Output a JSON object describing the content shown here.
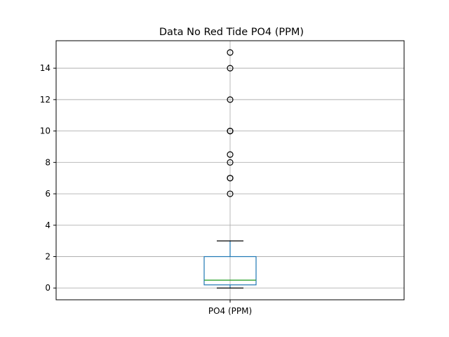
{
  "chart_data": {
    "type": "box",
    "title": "Data No Red Tide PO4 (PPM)",
    "categories": [
      "PO4 (PPM)"
    ],
    "ylim": [
      -0.75,
      15.75
    ],
    "yticks": [
      0,
      2,
      4,
      6,
      8,
      10,
      12,
      14
    ],
    "ytick_labels": [
      "0",
      "2",
      "4",
      "6",
      "8",
      "10",
      "12",
      "14"
    ],
    "grid": true,
    "boxes": [
      {
        "name": "PO4 (PPM)",
        "whisker_low": 0.0,
        "q1": 0.2,
        "median": 0.5,
        "q3": 2.0,
        "whisker_high": 3.0,
        "fliers": [
          6,
          7,
          7,
          8,
          8.5,
          10,
          10,
          12,
          14,
          15
        ]
      }
    ],
    "colors": {
      "box": "#1f77b4",
      "median": "#2ca02c",
      "cap": "#000000",
      "grid": "#b0b0b0"
    }
  }
}
